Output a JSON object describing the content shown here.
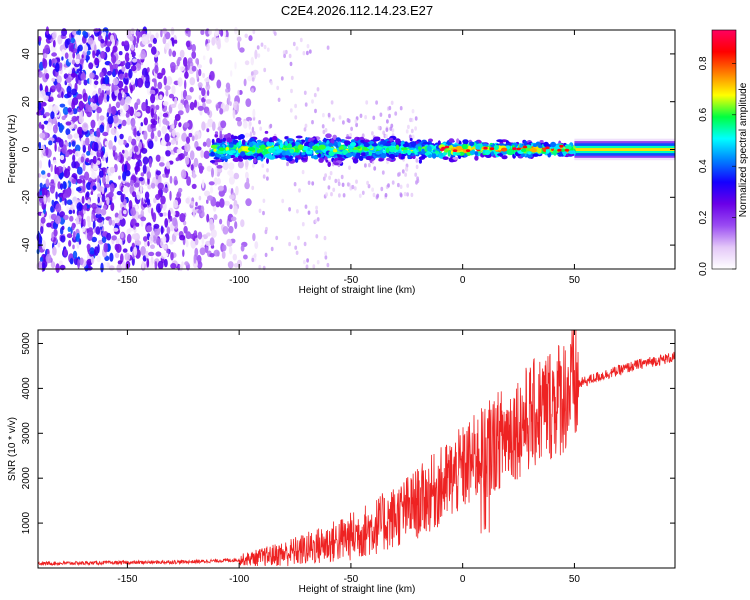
{
  "title": "C2E4.2026.112.14.23.E27",
  "chart_data": [
    {
      "type": "heatmap",
      "xlabel": "Height of straight line (km)",
      "ylabel": "Frequency (Hz)",
      "xlim": [
        -190,
        95
      ],
      "ylim": [
        -50,
        50
      ],
      "xticks": [
        -150,
        -100,
        -50,
        0,
        50
      ],
      "yticks": [
        -40,
        -20,
        0,
        20,
        40
      ],
      "colorbar": {
        "label": "Normalized spectral amplitude",
        "ticks": [
          0.0,
          0.2,
          0.4,
          0.6,
          0.8
        ],
        "tick_labels": [
          "0.0",
          "0.2",
          "0.4",
          "0.6",
          "0.8"
        ],
        "range": [
          0.0,
          0.93
        ],
        "colormap": [
          "#ffffff",
          "#e4c8f8",
          "#9a4cf2",
          "#6a00e8",
          "#1400ff",
          "#0080ff",
          "#00ffff",
          "#00ff40",
          "#ffff00",
          "#ff8000",
          "#ff0000",
          "#ff0060"
        ]
      },
      "regions": [
        {
          "description": "scattered noise",
          "x": [
            -190,
            -95
          ],
          "y": [
            -50,
            50
          ]
        },
        {
          "description": "narrow band around 0 Hz",
          "x": [
            -112,
            50
          ],
          "y": [
            -6,
            6
          ]
        },
        {
          "description": "steady tone at 0 Hz",
          "x": [
            50,
            95
          ],
          "y": [
            -3,
            3
          ]
        }
      ]
    },
    {
      "type": "line",
      "xlabel": "Height of straight line (km)",
      "ylabel": "SNR (10 * v/v)",
      "xlim": [
        -190,
        95
      ],
      "ylim": [
        0,
        5300
      ],
      "xticks": [
        -150,
        -100,
        -50,
        0,
        50
      ],
      "yticks": [
        1000,
        2000,
        3000,
        4000,
        5000
      ],
      "series": [
        {
          "color": "#ee2222",
          "x": [
            -190,
            -150,
            -120,
            -100,
            -90,
            -80,
            -70,
            -60,
            -50,
            -40,
            -30,
            -20,
            -10,
            0,
            10,
            20,
            30,
            40,
            48,
            52,
            60,
            70,
            80,
            95
          ],
          "y": [
            100,
            120,
            140,
            180,
            240,
            320,
            420,
            550,
            700,
            900,
            1150,
            1450,
            1800,
            2200,
            2600,
            3000,
            3350,
            3700,
            3950,
            4100,
            4250,
            4400,
            4550,
            4700
          ]
        }
      ]
    }
  ]
}
